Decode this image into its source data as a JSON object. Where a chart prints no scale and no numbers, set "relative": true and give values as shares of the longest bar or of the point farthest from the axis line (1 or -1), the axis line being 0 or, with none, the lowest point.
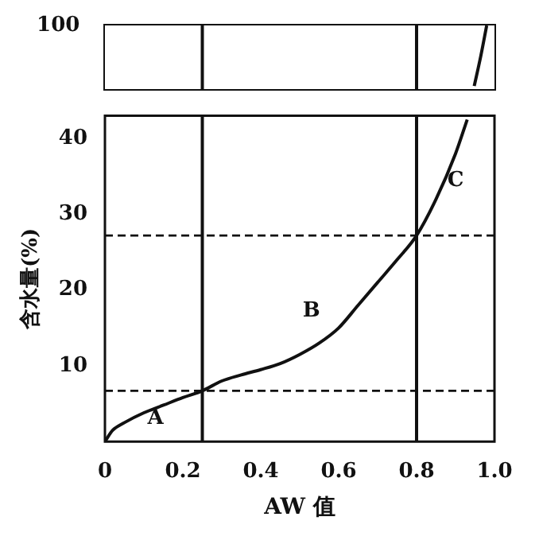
{
  "chart_data": [
    {
      "type": "line",
      "x": [
        0.948,
        0.965,
        0.98
      ],
      "values": [
        0,
        0.5,
        1
      ],
      "color": "#111111",
      "xlim": [
        0,
        1
      ],
      "relative": true,
      "grid": false,
      "marker": "none",
      "line_style": "solid",
      "ref_lines": [
        {
          "axis": "x",
          "value": 0.25
        },
        {
          "axis": "x",
          "value": 0.8
        }
      ],
      "annotations": [
        "100"
      ]
    },
    {
      "type": "line",
      "x": [
        0,
        0.02,
        0.05,
        0.1,
        0.15,
        0.2,
        0.25,
        0.3,
        0.35,
        0.4,
        0.45,
        0.5,
        0.55,
        0.6,
        0.65,
        0.7,
        0.75,
        0.8,
        0.85,
        0.9,
        0.93
      ],
      "values": [
        0,
        1.5,
        2.5,
        3.8,
        4.8,
        5.8,
        6.7,
        8,
        8.8,
        9.5,
        10.3,
        11.5,
        13,
        15,
        18,
        21,
        24,
        27.2,
        32,
        38,
        42.5
      ],
      "color": "#111111",
      "xlim": [
        0,
        1
      ],
      "ylim": [
        0,
        43
      ],
      "xticks": [
        0,
        {
          "value": 0.2,
          "label": "0.2"
        },
        {
          "value": 0.4,
          "label": "0.4"
        },
        {
          "value": 0.6,
          "label": "0.6"
        },
        {
          "value": 0.8,
          "label": "0.8"
        },
        {
          "value": 1,
          "label": "1.0"
        }
      ],
      "yticks": [
        10,
        20,
        30,
        40
      ],
      "grid": false,
      "marker": "none",
      "line_style": "solid",
      "xlabel": "AW 值",
      "ylabel": "含水量(%)",
      "ref_lines": [
        {
          "axis": "x",
          "value": 0.25
        },
        {
          "axis": "x",
          "value": 0.8
        },
        {
          "axis": "y",
          "value": 6.7,
          "line_style": "dashed"
        },
        {
          "axis": "y",
          "value": 27.2,
          "line_style": "dashed"
        }
      ],
      "annotations": [
        "A",
        "B",
        "C"
      ]
    }
  ]
}
